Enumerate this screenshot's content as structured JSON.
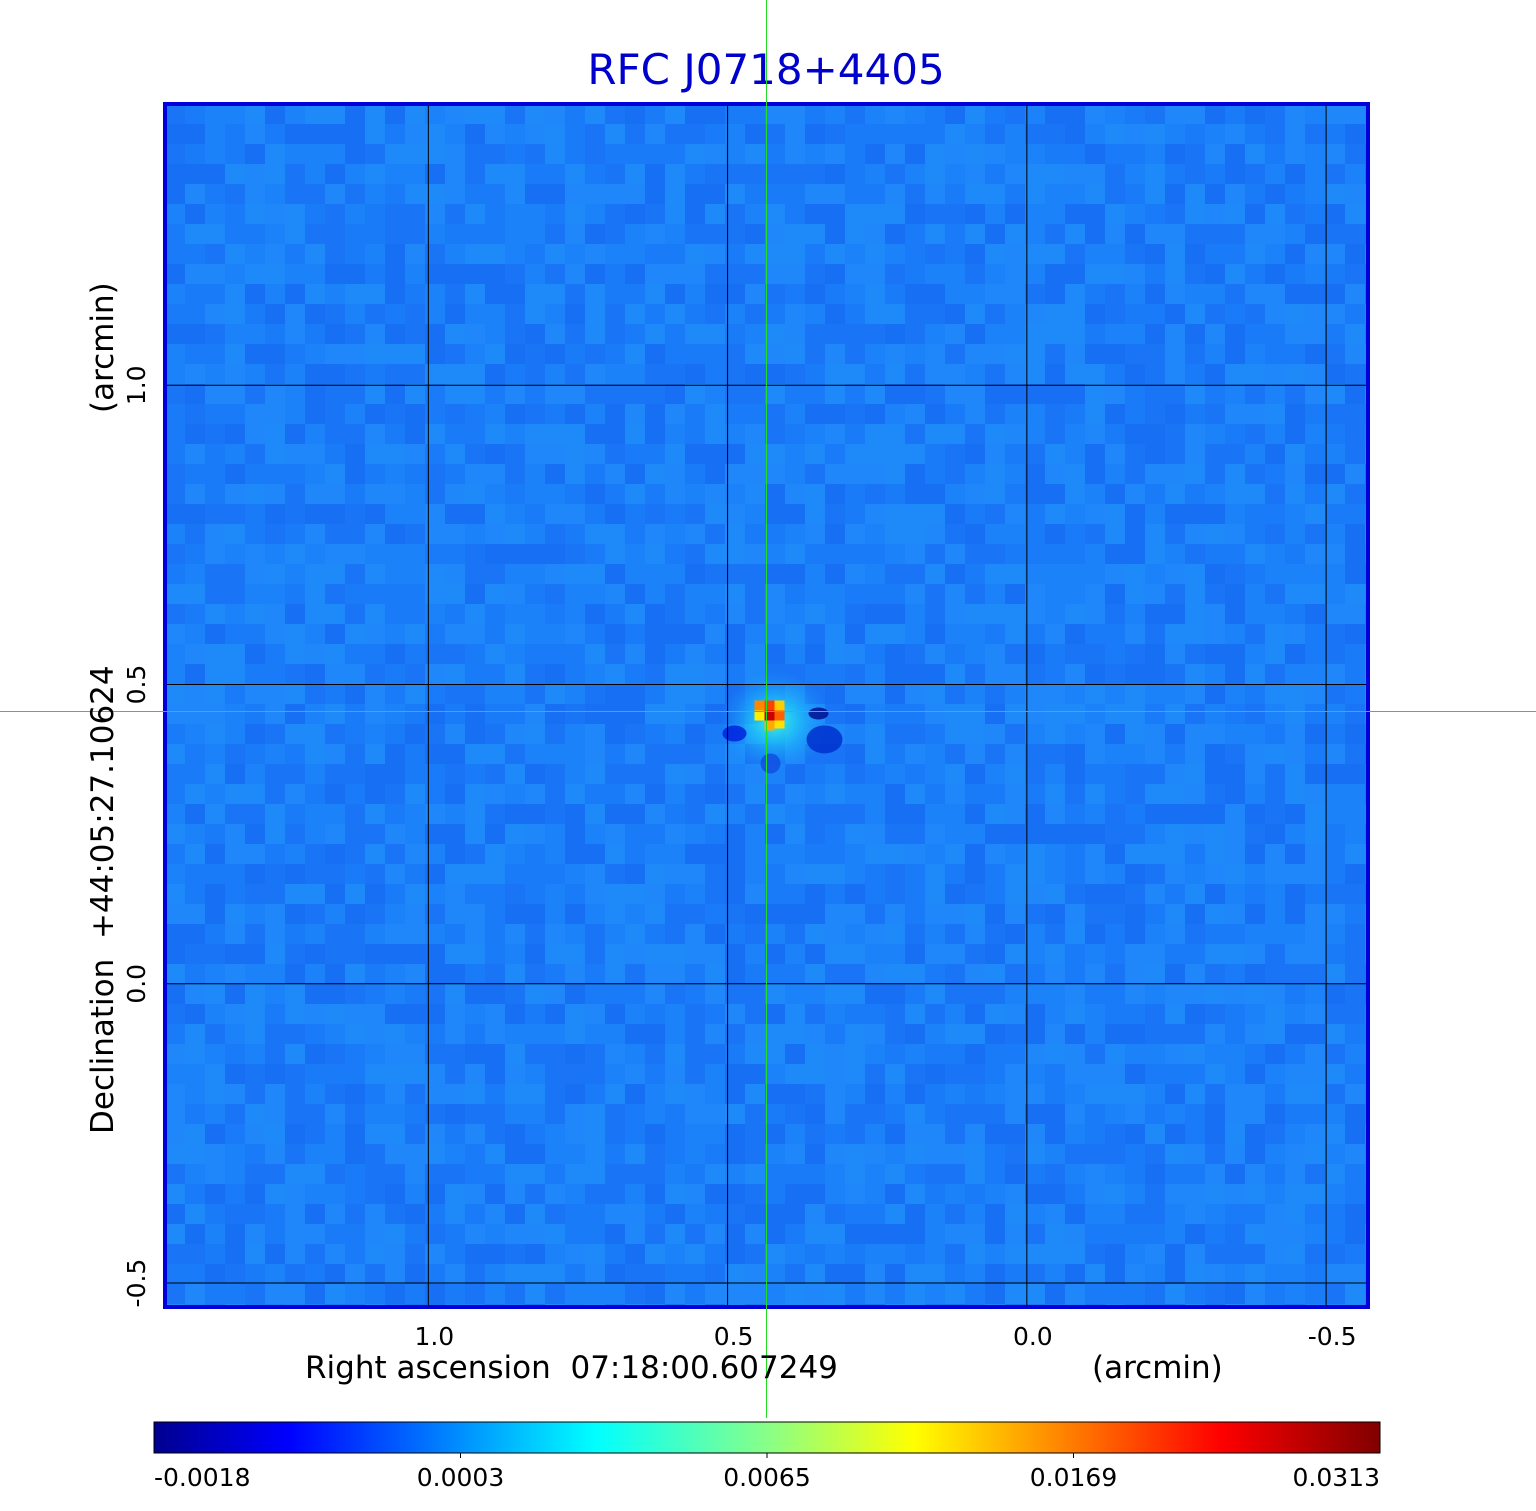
{
  "chart_data": {
    "type": "heatmap",
    "title": "RFC J0718+4405",
    "xlabel": "Right ascension  07:18:00.607249",
    "xunit": "(arcmin)",
    "ylabel": "Declination  +44:05:27.10624",
    "yunit": "(arcmin)",
    "xlim": [
      1.44,
      -0.57
    ],
    "ylim": [
      -0.54,
      1.47
    ],
    "x_ticks": [
      {
        "value": 1.0,
        "label": "1.0"
      },
      {
        "value": 0.5,
        "label": "0.5"
      },
      {
        "value": 0.0,
        "label": "0.0"
      },
      {
        "value": -0.5,
        "label": "-0.5"
      }
    ],
    "y_ticks": [
      {
        "value": 1.0,
        "label": "1.0"
      },
      {
        "value": 0.5,
        "label": "0.5"
      },
      {
        "value": 0.0,
        "label": "0.0"
      },
      {
        "value": -0.5,
        "label": "-0.5"
      }
    ],
    "grid": true,
    "crosshair": {
      "x": 0.435,
      "y": 0.455,
      "color": "#22dd22"
    },
    "peak": {
      "x": 0.435,
      "y": 0.455,
      "value": 0.0313
    },
    "background_level": -0.0005,
    "colormap": {
      "name": "jet",
      "ticks": [
        "-0.0018",
        "0.0003",
        "0.0065",
        "0.0169",
        "0.0313"
      ]
    },
    "colors": {
      "title": "#0000cc",
      "frame": "#0000dd",
      "grid": "#000000",
      "crosshair": "#22dd22"
    }
  }
}
